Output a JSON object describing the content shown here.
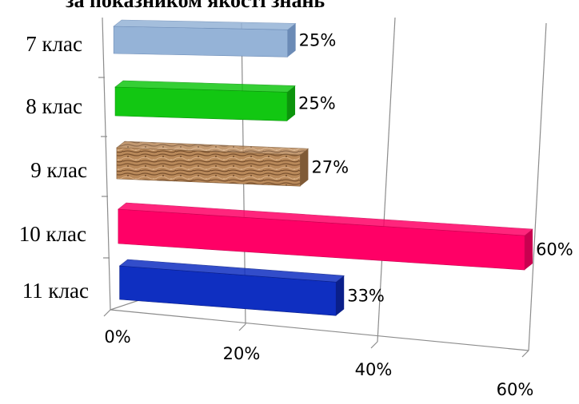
{
  "chart_data": {
    "type": "bar",
    "orientation": "horizontal",
    "title": "за показником якості знань",
    "categories": [
      "7 клас",
      "8 клас",
      "9 клас",
      "10 клас",
      "11 клас"
    ],
    "values": [
      25,
      25,
      27,
      60,
      33
    ],
    "data_labels": [
      "25%",
      "25%",
      "27%",
      "60%",
      "33%"
    ],
    "x_ticks": [
      "0%",
      "20%",
      "40%",
      "60%"
    ],
    "xlim": [
      0,
      60
    ],
    "xlabel": "",
    "ylabel": "",
    "grid": true,
    "style_3d": true,
    "bar_colors": [
      "#95b3d7",
      "#12c712",
      "#b9895a",
      "#ff0066",
      "#0f2fc1"
    ],
    "bar_side_colors": [
      "#6b8bb6",
      "#0c940c",
      "#7f5a36",
      "#c90050",
      "#0a1f8a"
    ],
    "bar_patterns": [
      "solid",
      "solid",
      "wood",
      "solid",
      "solid"
    ]
  }
}
